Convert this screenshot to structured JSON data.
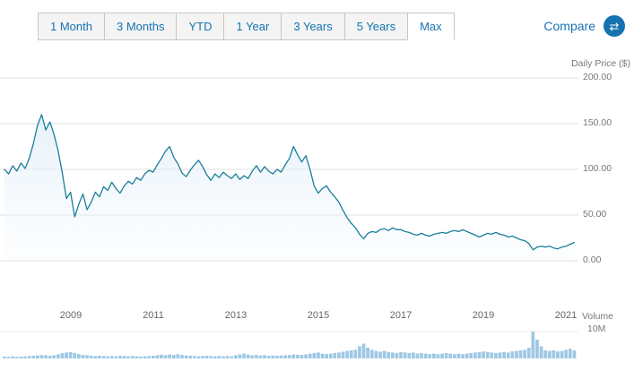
{
  "toolbar": {
    "tabs": [
      "1 Month",
      "3 Months",
      "YTD",
      "1 Year",
      "3 Years",
      "5 Years",
      "Max"
    ],
    "selected_tab": "Max",
    "compare_label": "Compare",
    "compare_icon": "swap-arrows-icon",
    "compare_icon_glyph": "⇄"
  },
  "colors": {
    "accent_blue": "#1673b1",
    "line": "#1a7f99",
    "area_top": "#d7e8f6",
    "area_bottom": "#f2f8fd",
    "volume_bar": "#9ec8e4",
    "gridline": "#e0e0e0",
    "axis_text": "#777777"
  },
  "chart_data": {
    "type": "line",
    "title": "",
    "y_axis_label": "Daily Price ($)",
    "y_ticks": [
      200,
      150,
      100,
      50,
      0
    ],
    "y_tick_labels": [
      "200.00",
      "150.00",
      "100.00",
      "50.00",
      "0.00"
    ],
    "ylim": [
      0,
      200
    ],
    "x_ticks": [
      2009,
      2011,
      2013,
      2015,
      2017,
      2019,
      2021
    ],
    "x_tick_labels": [
      "2009",
      "2011",
      "2013",
      "2015",
      "2017",
      "2019",
      "2021"
    ],
    "xlim": [
      2007.4,
      2021.3
    ],
    "grid": "horizontal",
    "legend": "none",
    "volume_axis_label": "Volume",
    "volume_tick_label": "10M",
    "volume_max": 10,
    "volume_unit": "M",
    "series": [
      {
        "name": "daily-price",
        "x": [
          2007.4,
          2007.5,
          2007.6,
          2007.7,
          2007.8,
          2007.9,
          2008.0,
          2008.1,
          2008.2,
          2008.3,
          2008.4,
          2008.5,
          2008.6,
          2008.7,
          2008.8,
          2008.9,
          2009.0,
          2009.1,
          2009.2,
          2009.3,
          2009.4,
          2009.5,
          2009.6,
          2009.7,
          2009.8,
          2009.9,
          2010.0,
          2010.1,
          2010.2,
          2010.3,
          2010.4,
          2010.5,
          2010.6,
          2010.7,
          2010.8,
          2010.9,
          2011.0,
          2011.1,
          2011.2,
          2011.3,
          2011.4,
          2011.5,
          2011.6,
          2011.7,
          2011.8,
          2011.9,
          2012.0,
          2012.1,
          2012.2,
          2012.3,
          2012.4,
          2012.5,
          2012.6,
          2012.7,
          2012.8,
          2012.9,
          2013.0,
          2013.1,
          2013.2,
          2013.3,
          2013.4,
          2013.5,
          2013.6,
          2013.7,
          2013.8,
          2013.9,
          2014.0,
          2014.1,
          2014.2,
          2014.3,
          2014.4,
          2014.5,
          2014.6,
          2014.7,
          2014.8,
          2014.9,
          2015.0,
          2015.1,
          2015.2,
          2015.3,
          2015.4,
          2015.5,
          2015.6,
          2015.7,
          2015.8,
          2015.9,
          2016.0,
          2016.1,
          2016.2,
          2016.3,
          2016.4,
          2016.5,
          2016.6,
          2016.7,
          2016.8,
          2016.9,
          2017.0,
          2017.1,
          2017.2,
          2017.3,
          2017.4,
          2017.5,
          2017.6,
          2017.7,
          2017.8,
          2017.9,
          2018.0,
          2018.1,
          2018.2,
          2018.3,
          2018.4,
          2018.5,
          2018.6,
          2018.7,
          2018.8,
          2018.9,
          2019.0,
          2019.1,
          2019.2,
          2019.3,
          2019.4,
          2019.5,
          2019.6,
          2019.7,
          2019.8,
          2019.9,
          2020.0,
          2020.1,
          2020.2,
          2020.3,
          2020.4,
          2020.5,
          2020.6,
          2020.7,
          2020.8,
          2020.9,
          2021.0,
          2021.1,
          2021.2
        ],
        "values": [
          100,
          95,
          104,
          98,
          107,
          101,
          112,
          128,
          148,
          160,
          143,
          152,
          138,
          120,
          96,
          68,
          75,
          48,
          62,
          73,
          56,
          64,
          75,
          70,
          81,
          77,
          86,
          79,
          74,
          82,
          87,
          84,
          91,
          88,
          95,
          99,
          97,
          105,
          112,
          120,
          125,
          113,
          106,
          96,
          92,
          99,
          105,
          110,
          103,
          94,
          88,
          95,
          91,
          97,
          93,
          90,
          95,
          89,
          93,
          90,
          98,
          104,
          97,
          103,
          98,
          95,
          100,
          97,
          105,
          112,
          125,
          116,
          108,
          115,
          100,
          82,
          74,
          79,
          82,
          75,
          70,
          64,
          55,
          47,
          41,
          36,
          29,
          24,
          30,
          32,
          31,
          34,
          35,
          33,
          36,
          34,
          34,
          32,
          31,
          29,
          28,
          30,
          28,
          27,
          29,
          30,
          31,
          30,
          32,
          33,
          32,
          34,
          32,
          30,
          28,
          26,
          28,
          30,
          29,
          31,
          29,
          28,
          26,
          27,
          25,
          23,
          22,
          19,
          12,
          15,
          16,
          15,
          16,
          14,
          13,
          15,
          16,
          18,
          20
        ]
      }
    ],
    "volume": [
      0.7,
      0.6,
      0.8,
      0.6,
      0.7,
      0.8,
      0.9,
      1.0,
      1.1,
      1.3,
      1.2,
      1.0,
      1.2,
      1.5,
      2.0,
      2.2,
      2.4,
      2.0,
      1.6,
      1.3,
      1.2,
      1.0,
      0.9,
      1.0,
      0.9,
      0.8,
      0.9,
      0.8,
      1.0,
      0.9,
      0.8,
      0.9,
      0.8,
      0.7,
      0.8,
      0.9,
      1.0,
      1.2,
      1.4,
      1.2,
      1.5,
      1.3,
      1.6,
      1.3,
      1.1,
      1.0,
      0.9,
      0.8,
      0.9,
      1.0,
      0.9,
      0.8,
      0.9,
      0.8,
      0.9,
      0.8,
      1.2,
      1.5,
      1.8,
      1.4,
      1.2,
      1.3,
      1.1,
      1.2,
      1.0,
      1.1,
      1.0,
      1.1,
      1.2,
      1.3,
      1.5,
      1.4,
      1.3,
      1.5,
      1.8,
      2.0,
      2.2,
      1.8,
      1.6,
      1.8,
      2.0,
      2.2,
      2.5,
      2.8,
      3.0,
      3.2,
      4.5,
      5.5,
      4.0,
      3.2,
      2.8,
      2.5,
      2.8,
      2.4,
      2.2,
      2.0,
      2.4,
      2.2,
      2.0,
      2.2,
      1.8,
      2.0,
      1.8,
      1.6,
      1.8,
      1.6,
      1.8,
      2.0,
      1.8,
      1.6,
      1.8,
      1.6,
      1.8,
      2.0,
      2.2,
      2.4,
      2.6,
      2.4,
      2.2,
      2.0,
      2.2,
      2.4,
      2.2,
      2.6,
      2.8,
      3.0,
      3.2,
      4.0,
      10.0,
      7.0,
      4.5,
      3.0,
      2.8,
      3.0,
      2.6,
      2.8,
      3.2,
      3.6,
      3.0
    ]
  }
}
